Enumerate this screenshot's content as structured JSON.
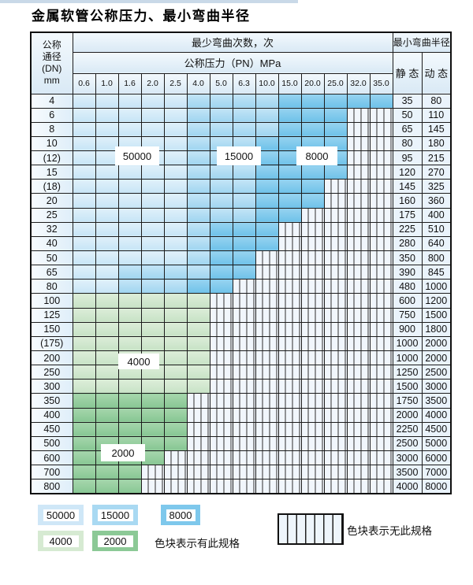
{
  "title": "金属软管公称压力、最小弯曲半径",
  "table": {
    "corner_header": [
      "公称",
      "通径",
      "(DN)",
      "mm"
    ],
    "bend_cycles_header": "最少弯曲次数，次",
    "pressure_header": "公称压力（PN）MPa",
    "pressures": [
      "0.6",
      "1.0",
      "1.6",
      "2.0",
      "2.5",
      "4.0",
      "5.0",
      "6.3",
      "10.0",
      "15.0",
      "20.0",
      "25.0",
      "32.0",
      "35.0"
    ],
    "radius_header": "最小弯曲半径",
    "static_header": "静 态",
    "dynamic_header": "动 态",
    "zone_legend": {
      "L": "50000",
      "M": "15000",
      "D": "8000",
      "G": "4000",
      "E": "2000",
      "X": "无此规格"
    },
    "zone_colors": {
      "L": "#cfe7f7",
      "M": "#a9d9f2",
      "D": "#7ec8ec",
      "G": "#d6ead2",
      "E": "#8cc996"
    },
    "rows": [
      {
        "dn": "4",
        "zones": "LLLLLMMMMDDDDD",
        "static": "35",
        "dynamic": "80"
      },
      {
        "dn": "6",
        "zones": "LLLLLMMMMDDDXX",
        "static": "50",
        "dynamic": "110"
      },
      {
        "dn": "8",
        "zones": "LLLLLMMMMDDDXX",
        "static": "65",
        "dynamic": "145"
      },
      {
        "dn": "10",
        "zones": "LLLLLMMMDDDDXX",
        "static": "80",
        "dynamic": "180"
      },
      {
        "dn": "(12)",
        "zones": "LLLLLMMMDDDDXX",
        "static": "95",
        "dynamic": "215"
      },
      {
        "dn": "15",
        "zones": "LLLLLMMMDDDDXX",
        "static": "120",
        "dynamic": "270"
      },
      {
        "dn": "(18)",
        "zones": "LLLLLMMMDDDXXX",
        "static": "145",
        "dynamic": "325"
      },
      {
        "dn": "20",
        "zones": "LLLLLMMMDDDXXX",
        "static": "160",
        "dynamic": "360"
      },
      {
        "dn": "25",
        "zones": "LLLLLMMMDDXXXX",
        "static": "175",
        "dynamic": "400"
      },
      {
        "dn": "32",
        "zones": "LLLLLMDDDXXXXX",
        "static": "225",
        "dynamic": "510"
      },
      {
        "dn": "40",
        "zones": "LLLLLMDDDXXXXX",
        "static": "280",
        "dynamic": "640"
      },
      {
        "dn": "50",
        "zones": "LLLLLMDDXXXXXX",
        "static": "350",
        "dynamic": "800"
      },
      {
        "dn": "65",
        "zones": "LLMMMMDDXXXXXX",
        "static": "390",
        "dynamic": "845"
      },
      {
        "dn": "80",
        "zones": "LLMMMDDXXXXXXX",
        "static": "480",
        "dynamic": "1000"
      },
      {
        "dn": "100",
        "zones": "GGGGGGXXXXXXXX",
        "static": "600",
        "dynamic": "1200"
      },
      {
        "dn": "125",
        "zones": "GGGGGGXXXXXXXX",
        "static": "750",
        "dynamic": "1500"
      },
      {
        "dn": "150",
        "zones": "GGGGGGXXXXXXXX",
        "static": "900",
        "dynamic": "1800"
      },
      {
        "dn": "(175)",
        "zones": "GGGGGGXXXXXXXX",
        "static": "1000",
        "dynamic": "2000"
      },
      {
        "dn": "200",
        "zones": "GGGGGGXXXXXXXX",
        "static": "1000",
        "dynamic": "2000"
      },
      {
        "dn": "250",
        "zones": "GGGGGGXXXXXXXX",
        "static": "1250",
        "dynamic": "2500"
      },
      {
        "dn": "300",
        "zones": "GGGGGGXXXXXXXX",
        "static": "1500",
        "dynamic": "3000"
      },
      {
        "dn": "350",
        "zones": "EEEEEXXXXXXXXX",
        "static": "1750",
        "dynamic": "3500"
      },
      {
        "dn": "400",
        "zones": "EEEEEXXXXXXXXX",
        "static": "2000",
        "dynamic": "4000"
      },
      {
        "dn": "450",
        "zones": "EEEEEXXXXXXXXX",
        "static": "2250",
        "dynamic": "4500"
      },
      {
        "dn": "500",
        "zones": "EEEEEXXXXXXXXX",
        "static": "2500",
        "dynamic": "5000"
      },
      {
        "dn": "600",
        "zones": "EEEEXXXXXXXXXX",
        "static": "3000",
        "dynamic": "6000"
      },
      {
        "dn": "700",
        "zones": "EEEXXXXXXXXXXX",
        "static": "3500",
        "dynamic": "7000"
      },
      {
        "dn": "800",
        "zones": "EEEXXXXXXXXXXX",
        "static": "4000",
        "dynamic": "8000"
      }
    ]
  },
  "overlays": [
    {
      "text": "50000"
    },
    {
      "text": "15000"
    },
    {
      "text": "8000"
    },
    {
      "text": "4000"
    },
    {
      "text": "2000"
    }
  ],
  "legend": {
    "items": [
      {
        "label": "50000",
        "color": "#cfe7f7"
      },
      {
        "label": "15000",
        "color": "#a9d9f2"
      },
      {
        "label": "8000",
        "color": "#7ec8ec"
      },
      {
        "label": "4000",
        "color": "#d6ead2"
      },
      {
        "label": "2000",
        "color": "#8cc996"
      }
    ],
    "has_spec_text": "色块表示有此规格",
    "no_spec_text": "色块表示无此规格"
  }
}
